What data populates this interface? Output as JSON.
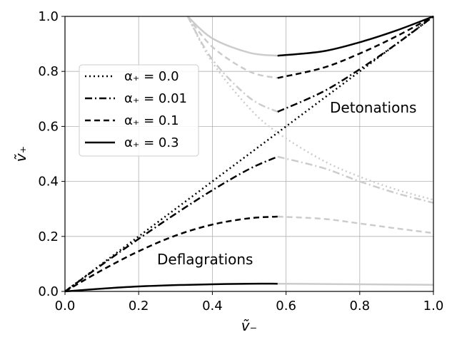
{
  "chart_data": {
    "type": "line",
    "xlabel": "ṽ₋",
    "ylabel": "ṽ₊",
    "xlim": [
      0.0,
      1.0
    ],
    "ylim": [
      0.0,
      1.0
    ],
    "xticks": [
      "0.0",
      "0.2",
      "0.4",
      "0.6",
      "0.8",
      "1.0"
    ],
    "yticks": [
      "0.0",
      "0.2",
      "0.4",
      "0.6",
      "0.8",
      "1.0"
    ],
    "grid": true,
    "legend_placement": "upper-left",
    "annotations": [
      "Detonations",
      "Deflagrations"
    ],
    "series": [
      {
        "name": "α₊ = 0.0",
        "style": "dotted",
        "color": "#000000",
        "branches": [
          {
            "kind": "deflagration",
            "x": [
              0.0,
              0.577
            ],
            "y": [
              0.0,
              0.577
            ]
          },
          {
            "kind": "detonation",
            "x": [
              0.577,
              1.0
            ],
            "y": [
              0.577,
              1.0
            ]
          }
        ],
        "unphysical_color": "#cccccc",
        "unphysical": [
          {
            "x": [
              0.333,
              0.4,
              0.5,
              0.577,
              0.7,
              0.8,
              0.9,
              1.0
            ],
            "y": [
              1.0,
              0.833,
              0.667,
              0.577,
              0.476,
              0.417,
              0.37,
              0.333
            ]
          }
        ]
      },
      {
        "name": "α₊ = 0.01",
        "style": "dashdot",
        "color": "#000000",
        "branches": [
          {
            "kind": "deflagration",
            "x": [
              0.0,
              0.1,
              0.2,
              0.3,
              0.4,
              0.5,
              0.577
            ],
            "y": [
              0.0,
              0.097,
              0.191,
              0.282,
              0.368,
              0.445,
              0.49
            ]
          },
          {
            "kind": "detonation",
            "x": [
              0.577,
              0.7,
              0.8,
              0.9,
              1.0
            ],
            "y": [
              0.653,
              0.726,
              0.808,
              0.9,
              1.0
            ]
          }
        ],
        "unphysical_color": "#cccccc",
        "unphysical": [
          {
            "x": [
              0.333,
              0.4,
              0.5,
              0.577
            ],
            "y": [
              1.0,
              0.843,
              0.705,
              0.653
            ]
          },
          {
            "x": [
              0.577,
              0.7,
              0.8,
              0.9,
              1.0
            ],
            "y": [
              0.49,
              0.449,
              0.4,
              0.357,
              0.322
            ]
          }
        ]
      },
      {
        "name": "α₊ = 0.1",
        "style": "dashed",
        "color": "#000000",
        "branches": [
          {
            "kind": "deflagration",
            "x": [
              0.0,
              0.1,
              0.2,
              0.3,
              0.4,
              0.5,
              0.577
            ],
            "y": [
              0.0,
              0.077,
              0.146,
              0.203,
              0.243,
              0.266,
              0.272
            ]
          },
          {
            "kind": "detonation",
            "x": [
              0.577,
              0.7,
              0.8,
              0.9,
              1.0
            ],
            "y": [
              0.776,
              0.813,
              0.865,
              0.928,
              1.0
            ]
          }
        ],
        "unphysical_color": "#cccccc",
        "unphysical": [
          {
            "x": [
              0.333,
              0.4,
              0.5,
              0.577
            ],
            "y": [
              1.0,
              0.889,
              0.8,
              0.776
            ]
          },
          {
            "x": [
              0.577,
              0.7,
              0.8,
              0.9,
              1.0
            ],
            "y": [
              0.272,
              0.264,
              0.247,
              0.229,
              0.212
            ]
          }
        ]
      },
      {
        "name": "α₊ = 0.3",
        "style": "solid",
        "color": "#000000",
        "branches": [
          {
            "kind": "deflagration",
            "x": [
              0.0,
              0.1,
              0.2,
              0.3,
              0.4,
              0.5,
              0.577
            ],
            "y": [
              0.0,
              0.01,
              0.018,
              0.023,
              0.026,
              0.028,
              0.028
            ]
          },
          {
            "kind": "detonation",
            "x": [
              0.577,
              0.7,
              0.8,
              0.9,
              1.0
            ],
            "y": [
              0.857,
              0.873,
              0.906,
              0.949,
              1.0
            ]
          }
        ],
        "unphysical_color": "#cccccc",
        "unphysical": [
          {
            "x": [
              0.333,
              0.4,
              0.5,
              0.577
            ],
            "y": [
              1.0,
              0.92,
              0.868,
              0.857
            ]
          },
          {
            "x": [
              0.577,
              0.7,
              0.8,
              0.9,
              1.0
            ],
            "y": [
              0.028,
              0.027,
              0.026,
              0.025,
              0.024
            ]
          }
        ]
      }
    ]
  }
}
